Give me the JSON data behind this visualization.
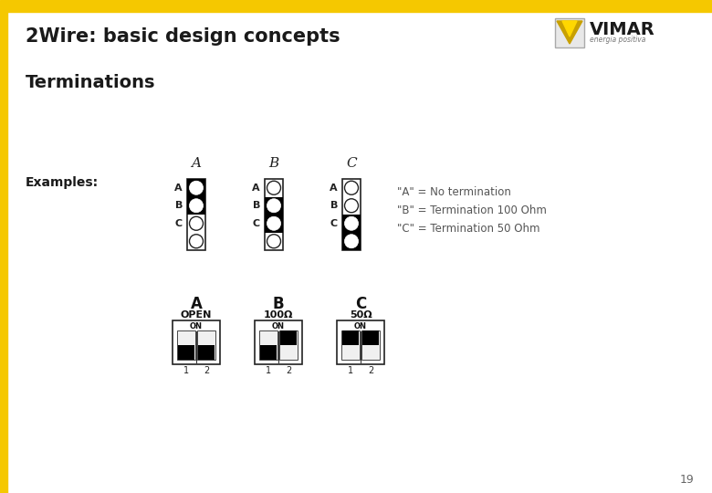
{
  "title": "2Wire: basic design concepts",
  "section_title": "Terminations",
  "examples_label": "Examples:",
  "legend_lines": [
    "\"A\" = No termination",
    "\"B\" = Termination 100 Ohm",
    "\"C\" = Termination 50 Ohm"
  ],
  "top_bar_color": "#F5C800",
  "left_bar_color": "#F5C800",
  "background_color": "#FFFFFF",
  "title_color": "#1a1a1a",
  "page_number": "19",
  "vimar_text": "VIMAR",
  "vimar_sub": "energia positiva",
  "connector_A_filled": [
    1,
    2
  ],
  "connector_B_filled": [
    2,
    3
  ],
  "connector_C_filled": [
    3,
    4
  ],
  "dip_A": [
    false,
    false
  ],
  "dip_B": [
    false,
    true
  ],
  "dip_C": [
    true,
    true
  ],
  "dip_labels": [
    "A",
    "B",
    "C"
  ],
  "dip_sublabels": [
    "OPEN",
    "100Ω",
    "50Ω"
  ]
}
